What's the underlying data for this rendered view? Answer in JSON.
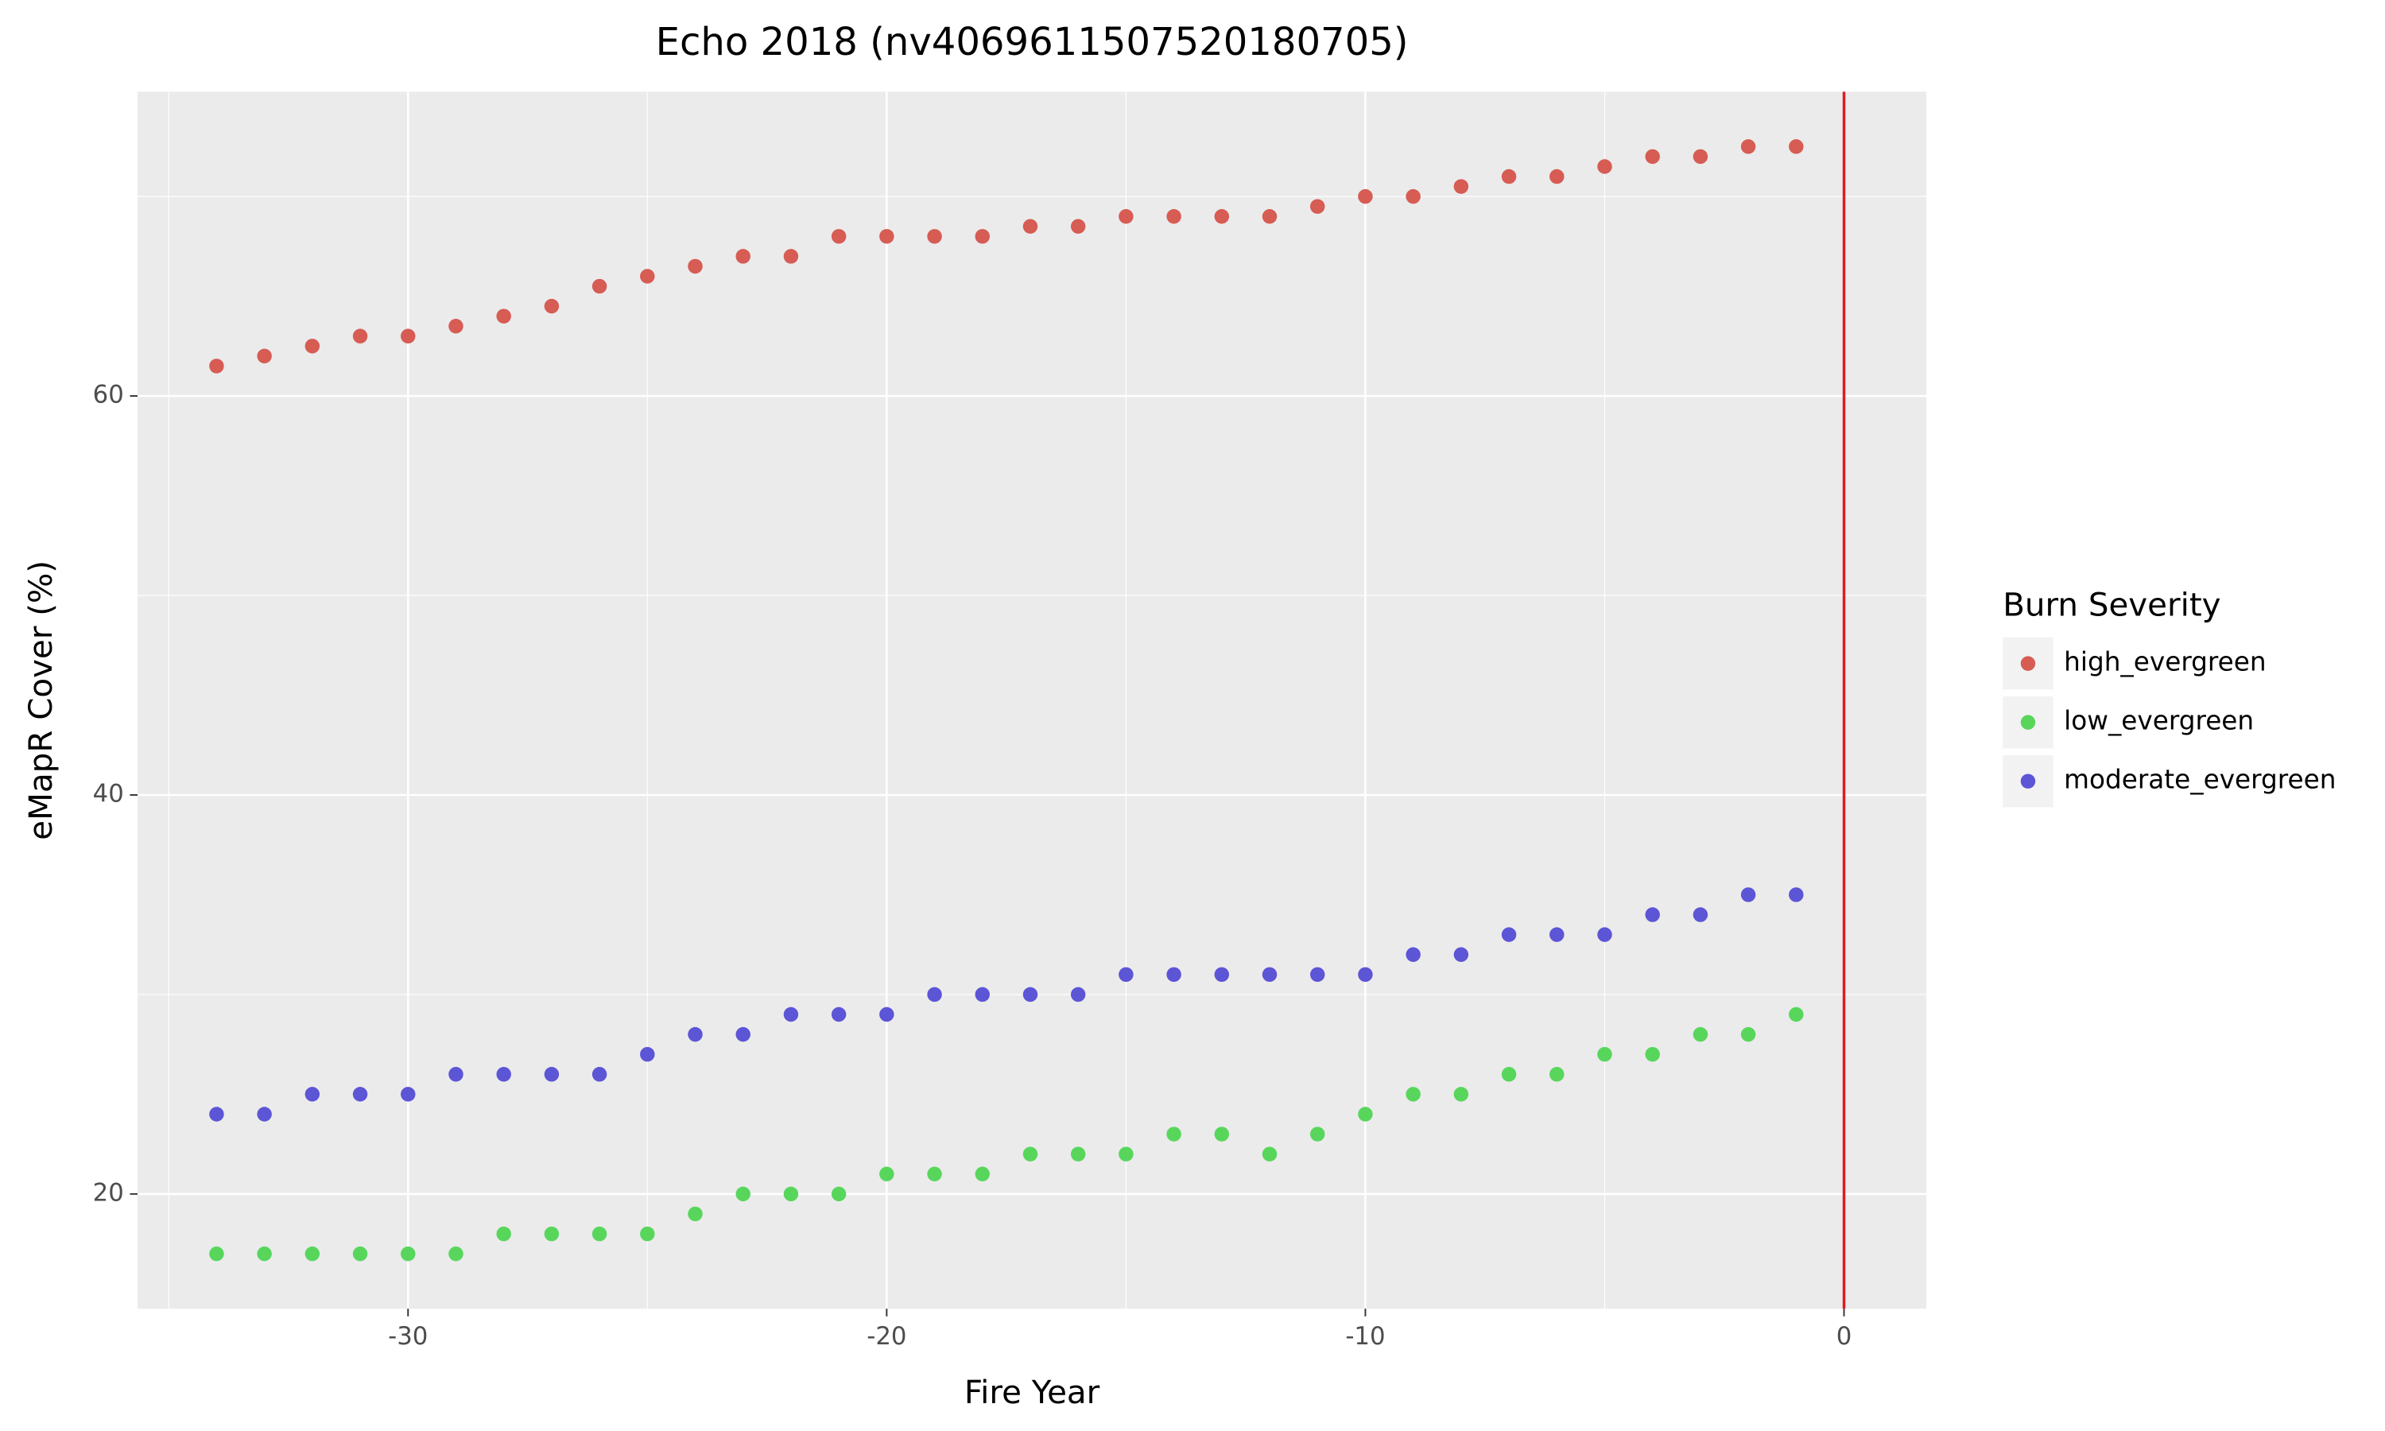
{
  "chart_data": {
    "type": "scatter",
    "title": "Echo 2018 (nv4069611507520180705)",
    "x_label": "Fire Year",
    "y_label": "eMapR Cover (%)",
    "legend_title": "Burn Severity",
    "legend": "right",
    "grid": true,
    "xlim": [
      -35.65,
      1.72
    ],
    "ylim": [
      14.25,
      75.25
    ],
    "xticks": [
      -30,
      -20,
      -10,
      0
    ],
    "yticks": [
      20,
      40,
      60
    ],
    "x_minor_ticks": [
      -35,
      -25,
      -15,
      -5
    ],
    "y_minor_ticks": [
      30,
      50,
      70
    ],
    "vline": 0,
    "vline_color": "#e01b22",
    "x": [
      -34,
      -33,
      -32,
      -31,
      -30,
      -29,
      -28,
      -27,
      -26,
      -25,
      -24,
      -23,
      -22,
      -21,
      -20,
      -19,
      -18,
      -17,
      -16,
      -15,
      -14,
      -13,
      -12,
      -11,
      -10,
      -9,
      -8,
      -7,
      -6,
      -5,
      -4,
      -3,
      -2,
      -1
    ],
    "series": [
      {
        "name": "high_evergreen",
        "color": "#d65c54",
        "values": [
          61.5,
          62,
          62.5,
          63,
          63,
          63.5,
          64,
          64.5,
          65.5,
          66,
          66.5,
          67,
          67,
          68,
          68,
          68,
          68,
          68.5,
          68.5,
          69,
          69,
          69,
          69,
          69.5,
          70,
          70,
          70.5,
          71,
          71,
          71.5,
          72,
          72,
          72.5,
          72.5
        ]
      },
      {
        "name": "low_evergreen",
        "color": "#58d65c",
        "values": [
          17,
          17,
          17,
          17,
          17,
          17,
          18,
          18,
          18,
          18,
          19,
          20,
          20,
          20,
          21,
          21,
          21,
          22,
          22,
          22,
          23,
          23,
          22,
          23,
          24,
          25,
          25,
          26,
          26,
          27,
          27,
          28,
          28,
          29
        ]
      },
      {
        "name": "moderate_evergreen",
        "color": "#5c55d6",
        "values": [
          24,
          24,
          25,
          25,
          25,
          26,
          26,
          26,
          26,
          27,
          28,
          28,
          29,
          29,
          29,
          30,
          30,
          30,
          30,
          31,
          31,
          31,
          31,
          31,
          31,
          32,
          32,
          33,
          33,
          33,
          34,
          34,
          35,
          35
        ]
      }
    ]
  }
}
